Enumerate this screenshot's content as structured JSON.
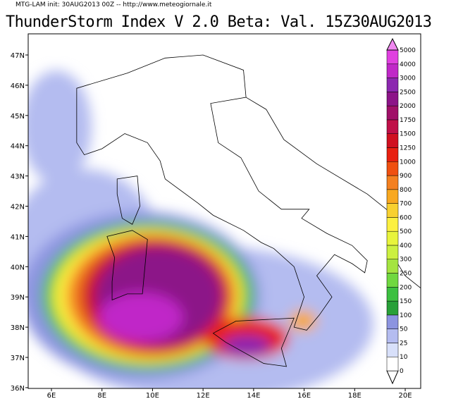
{
  "header": {
    "subtitle": "MTG-LAM init: 30AUG2013 00Z -- http://www.meteogiornale.it",
    "title": "ThunderStorm Index V 2.0 Beta: Val. 15Z30AUG2013"
  },
  "map": {
    "lat_labels": [
      "47N",
      "46N",
      "45N",
      "44N",
      "43N",
      "42N",
      "41N",
      "40N",
      "39N",
      "38N",
      "37N",
      "36N"
    ],
    "lon_labels": [
      "6E",
      "8E",
      "10E",
      "12E",
      "14E",
      "16E",
      "18E",
      "20E"
    ]
  },
  "colorbar": {
    "levels": [
      {
        "label": "0",
        "color": "#ffffff"
      },
      {
        "label": "10",
        "color": "#d8e0fa"
      },
      {
        "label": "25",
        "color": "#b4bcf0"
      },
      {
        "label": "50",
        "color": "#8c94e0"
      },
      {
        "label": "100",
        "color": "#28a038"
      },
      {
        "label": "150",
        "color": "#3cc040"
      },
      {
        "label": "200",
        "color": "#70d840"
      },
      {
        "label": "250",
        "color": "#a4e440"
      },
      {
        "label": "300",
        "color": "#ccf040"
      },
      {
        "label": "400",
        "color": "#e8f43c"
      },
      {
        "label": "500",
        "color": "#fcf040"
      },
      {
        "label": "600",
        "color": "#f8d030"
      },
      {
        "label": "700",
        "color": "#f8a820"
      },
      {
        "label": "800",
        "color": "#f48020"
      },
      {
        "label": "900",
        "color": "#f05010"
      },
      {
        "label": "1000",
        "color": "#e82010"
      },
      {
        "label": "1250",
        "color": "#d01020"
      },
      {
        "label": "1500",
        "color": "#c01048"
      },
      {
        "label": "1750",
        "color": "#a01068"
      },
      {
        "label": "2000",
        "color": "#8c1488"
      },
      {
        "label": "2500",
        "color": "#8c28b0"
      },
      {
        "label": "3000",
        "color": "#c028c8"
      },
      {
        "label": "4000",
        "color": "#e040e0"
      },
      {
        "label": "5000",
        "color": "#f088f0"
      }
    ]
  }
}
